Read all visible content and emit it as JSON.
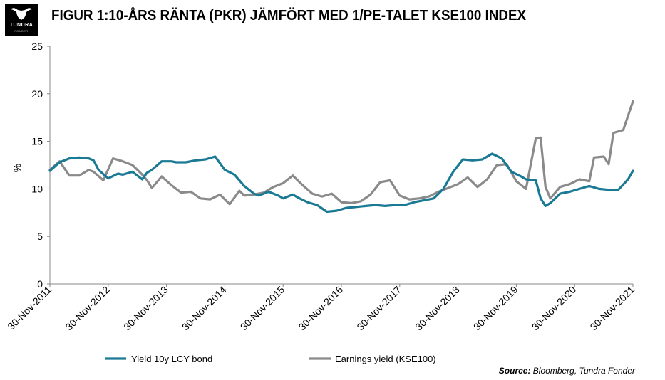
{
  "header": {
    "logo_text": "TUNDRA",
    "logo_subtext": "FONDER",
    "title": "FIGUR 1:10-ÅRS RÄNTA (PKR) JÄMFÖRT MED 1/PE-TALET KSE100 INDEX"
  },
  "footer": {
    "source_label": "Source:",
    "source_text": " Bloomberg, Tundra Fonder"
  },
  "chart_data": {
    "type": "line",
    "title": "FIGUR 1:10-ÅRS RÄNTA (PKR) JÄMFÖRT MED 1/PE-TALET KSE100 INDEX",
    "ylabel": "%",
    "xlabel": "",
    "ylim": [
      0,
      25
    ],
    "yticks": [
      0,
      5,
      10,
      15,
      20,
      25
    ],
    "x_start": "2011-11-30",
    "x_end": "2021-11-30",
    "x_ticks": [
      "30-Nov-2011",
      "30-Nov-2012",
      "30-Nov-2013",
      "30-Nov-2014",
      "30-Nov-2015",
      "30-Nov-2016",
      "30-Nov-2017",
      "30-Nov-2018",
      "30-Nov-2019",
      "30-Nov-2020",
      "30-Nov-2021"
    ],
    "grid": false,
    "legend_position": "bottom-left",
    "series": [
      {
        "name": "Yield 10y LCY bond",
        "color": "#1a7a94",
        "x": [
          "2011-11",
          "2012-01",
          "2012-03",
          "2012-05",
          "2012-07",
          "2012-08",
          "2012-09",
          "2012-11",
          "2013-01",
          "2013-02",
          "2013-04",
          "2013-06",
          "2013-07",
          "2013-08",
          "2013-10",
          "2013-12",
          "2014-01",
          "2014-03",
          "2014-05",
          "2014-07",
          "2014-09",
          "2014-11",
          "2015-01",
          "2015-03",
          "2015-05",
          "2015-06",
          "2015-08",
          "2015-10",
          "2015-11",
          "2016-01",
          "2016-02",
          "2016-04",
          "2016-06",
          "2016-08",
          "2016-10",
          "2016-12",
          "2017-02",
          "2017-04",
          "2017-06",
          "2017-08",
          "2017-10",
          "2017-12",
          "2018-02",
          "2018-04",
          "2018-06",
          "2018-08",
          "2018-10",
          "2018-12",
          "2019-02",
          "2019-04",
          "2019-06",
          "2019-08",
          "2019-10",
          "2019-12",
          "2020-01",
          "2020-03",
          "2020-04",
          "2020-05",
          "2020-06",
          "2020-08",
          "2020-10",
          "2020-12",
          "2021-02",
          "2021-04",
          "2021-06",
          "2021-08",
          "2021-10",
          "2021-11"
        ],
        "y": [
          11.9,
          12.8,
          13.2,
          13.3,
          13.2,
          13.0,
          12.0,
          11.1,
          11.6,
          11.5,
          11.8,
          11.0,
          11.7,
          12.0,
          12.9,
          12.9,
          12.8,
          12.8,
          13.0,
          13.1,
          13.4,
          12.0,
          11.5,
          10.3,
          9.5,
          9.3,
          9.7,
          9.3,
          9.0,
          9.4,
          9.1,
          8.6,
          8.3,
          7.6,
          7.7,
          8.0,
          8.1,
          8.2,
          8.3,
          8.2,
          8.3,
          8.3,
          8.6,
          8.8,
          9.0,
          10.0,
          11.8,
          13.1,
          13.0,
          13.1,
          13.7,
          13.2,
          11.8,
          11.3,
          11.0,
          10.9,
          9.0,
          8.2,
          8.5,
          9.5,
          9.7,
          10.0,
          10.3,
          10.0,
          9.9,
          9.9,
          11.0,
          11.9
        ]
      },
      {
        "name": "Earnings yield (KSE100)",
        "color": "#8a8a8a",
        "x": [
          "2011-11",
          "2012-01",
          "2012-03",
          "2012-05",
          "2012-07",
          "2012-08",
          "2012-10",
          "2012-12",
          "2013-02",
          "2013-04",
          "2013-06",
          "2013-07",
          "2013-08",
          "2013-10",
          "2013-12",
          "2014-02",
          "2014-04",
          "2014-06",
          "2014-08",
          "2014-10",
          "2014-12",
          "2015-02",
          "2015-03",
          "2015-05",
          "2015-07",
          "2015-09",
          "2015-11",
          "2016-01",
          "2016-03",
          "2016-05",
          "2016-07",
          "2016-09",
          "2016-11",
          "2017-01",
          "2017-03",
          "2017-05",
          "2017-07",
          "2017-09",
          "2017-11",
          "2018-01",
          "2018-03",
          "2018-05",
          "2018-07",
          "2018-09",
          "2018-11",
          "2019-01",
          "2019-03",
          "2019-05",
          "2019-07",
          "2019-09",
          "2019-11",
          "2020-01",
          "2020-03",
          "2020-04",
          "2020-05",
          "2020-06",
          "2020-08",
          "2020-10",
          "2020-12",
          "2021-02",
          "2021-03",
          "2021-05",
          "2021-06",
          "2021-07",
          "2021-09",
          "2021-10",
          "2021-11"
        ],
        "y": [
          12.0,
          12.9,
          11.4,
          11.4,
          12.0,
          11.8,
          10.9,
          13.2,
          12.9,
          12.5,
          11.5,
          10.9,
          10.1,
          11.3,
          10.4,
          9.6,
          9.7,
          9.0,
          8.9,
          9.4,
          8.4,
          9.8,
          9.3,
          9.4,
          9.6,
          10.2,
          10.6,
          11.4,
          10.4,
          9.5,
          9.2,
          9.5,
          8.6,
          8.5,
          8.7,
          9.4,
          10.7,
          10.9,
          9.3,
          8.9,
          9.0,
          9.2,
          9.7,
          10.1,
          10.5,
          11.2,
          10.2,
          11.0,
          12.5,
          12.6,
          10.8,
          10.0,
          15.3,
          15.4,
          10.2,
          9.0,
          10.2,
          10.5,
          11.0,
          10.8,
          13.3,
          13.4,
          12.6,
          15.9,
          16.2,
          17.7,
          19.2
        ]
      }
    ]
  }
}
